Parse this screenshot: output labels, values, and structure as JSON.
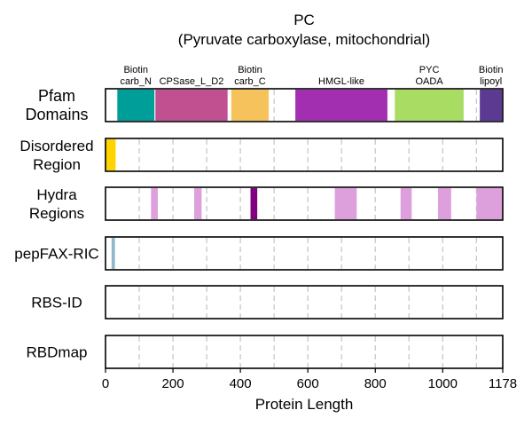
{
  "chart_data": {
    "type": "protein_track",
    "title": "PC",
    "subtitle": "(Pyruvate carboxylase, mitochondrial)",
    "xlabel": "Protein Length",
    "xlim": [
      0,
      1178
    ],
    "xticks": [
      0,
      200,
      400,
      600,
      800,
      1000,
      1178
    ],
    "gridlines": [
      100,
      200,
      300,
      400,
      500,
      600,
      700,
      800,
      900,
      1000,
      1100
    ],
    "colors": {
      "grid": "#c8c8c8",
      "border": "#000000"
    },
    "tracks": [
      {
        "name": "pfam",
        "label_lines": [
          "Pfam",
          "Domains"
        ],
        "segments": [
          {
            "start": 35,
            "end": 145,
            "color": "#009e99",
            "label_lines": [
              "Biotin",
              "carb_N"
            ]
          },
          {
            "start": 148,
            "end": 362,
            "color": "#c0508f",
            "label_lines": [
              "CPSase_L_D2"
            ]
          },
          {
            "start": 373,
            "end": 484,
            "color": "#f5c25c",
            "label_lines": [
              "Biotin",
              "carb_C"
            ]
          },
          {
            "start": 563,
            "end": 836,
            "color": "#a22fb0",
            "label_lines": [
              "HMGL-like"
            ]
          },
          {
            "start": 858,
            "end": 1062,
            "color": "#a8dc63",
            "label_lines": [
              "PYC",
              "OADA"
            ]
          },
          {
            "start": 1110,
            "end": 1176,
            "color": "#5c3a91",
            "label_lines": [
              "Biotin",
              "lipoyl"
            ]
          }
        ]
      },
      {
        "name": "disordered",
        "label_lines": [
          "Disordered",
          "Region"
        ],
        "segments": [
          {
            "start": 0,
            "end": 30,
            "color": "#ffd400"
          }
        ]
      },
      {
        "name": "hydra",
        "label_lines": [
          "Hydra",
          "Regions"
        ],
        "segments": [
          {
            "start": 135,
            "end": 155,
            "color": "#dda0dd"
          },
          {
            "start": 263,
            "end": 285,
            "color": "#dda0dd"
          },
          {
            "start": 430,
            "end": 450,
            "color": "#800080"
          },
          {
            "start": 680,
            "end": 745,
            "color": "#dda0dd"
          },
          {
            "start": 875,
            "end": 908,
            "color": "#dda0dd"
          },
          {
            "start": 986,
            "end": 1025,
            "color": "#dda0dd"
          },
          {
            "start": 1100,
            "end": 1178,
            "color": "#dda0dd"
          }
        ]
      },
      {
        "name": "pepfax",
        "label_lines": [
          "pepFAX-RIC"
        ],
        "segments": [
          {
            "start": 18,
            "end": 28,
            "color": "#91b8c8"
          }
        ]
      },
      {
        "name": "rbsid",
        "label_lines": [
          "RBS-ID"
        ],
        "segments": []
      },
      {
        "name": "rbdmap",
        "label_lines": [
          "RBDmap"
        ],
        "segments": []
      }
    ]
  }
}
